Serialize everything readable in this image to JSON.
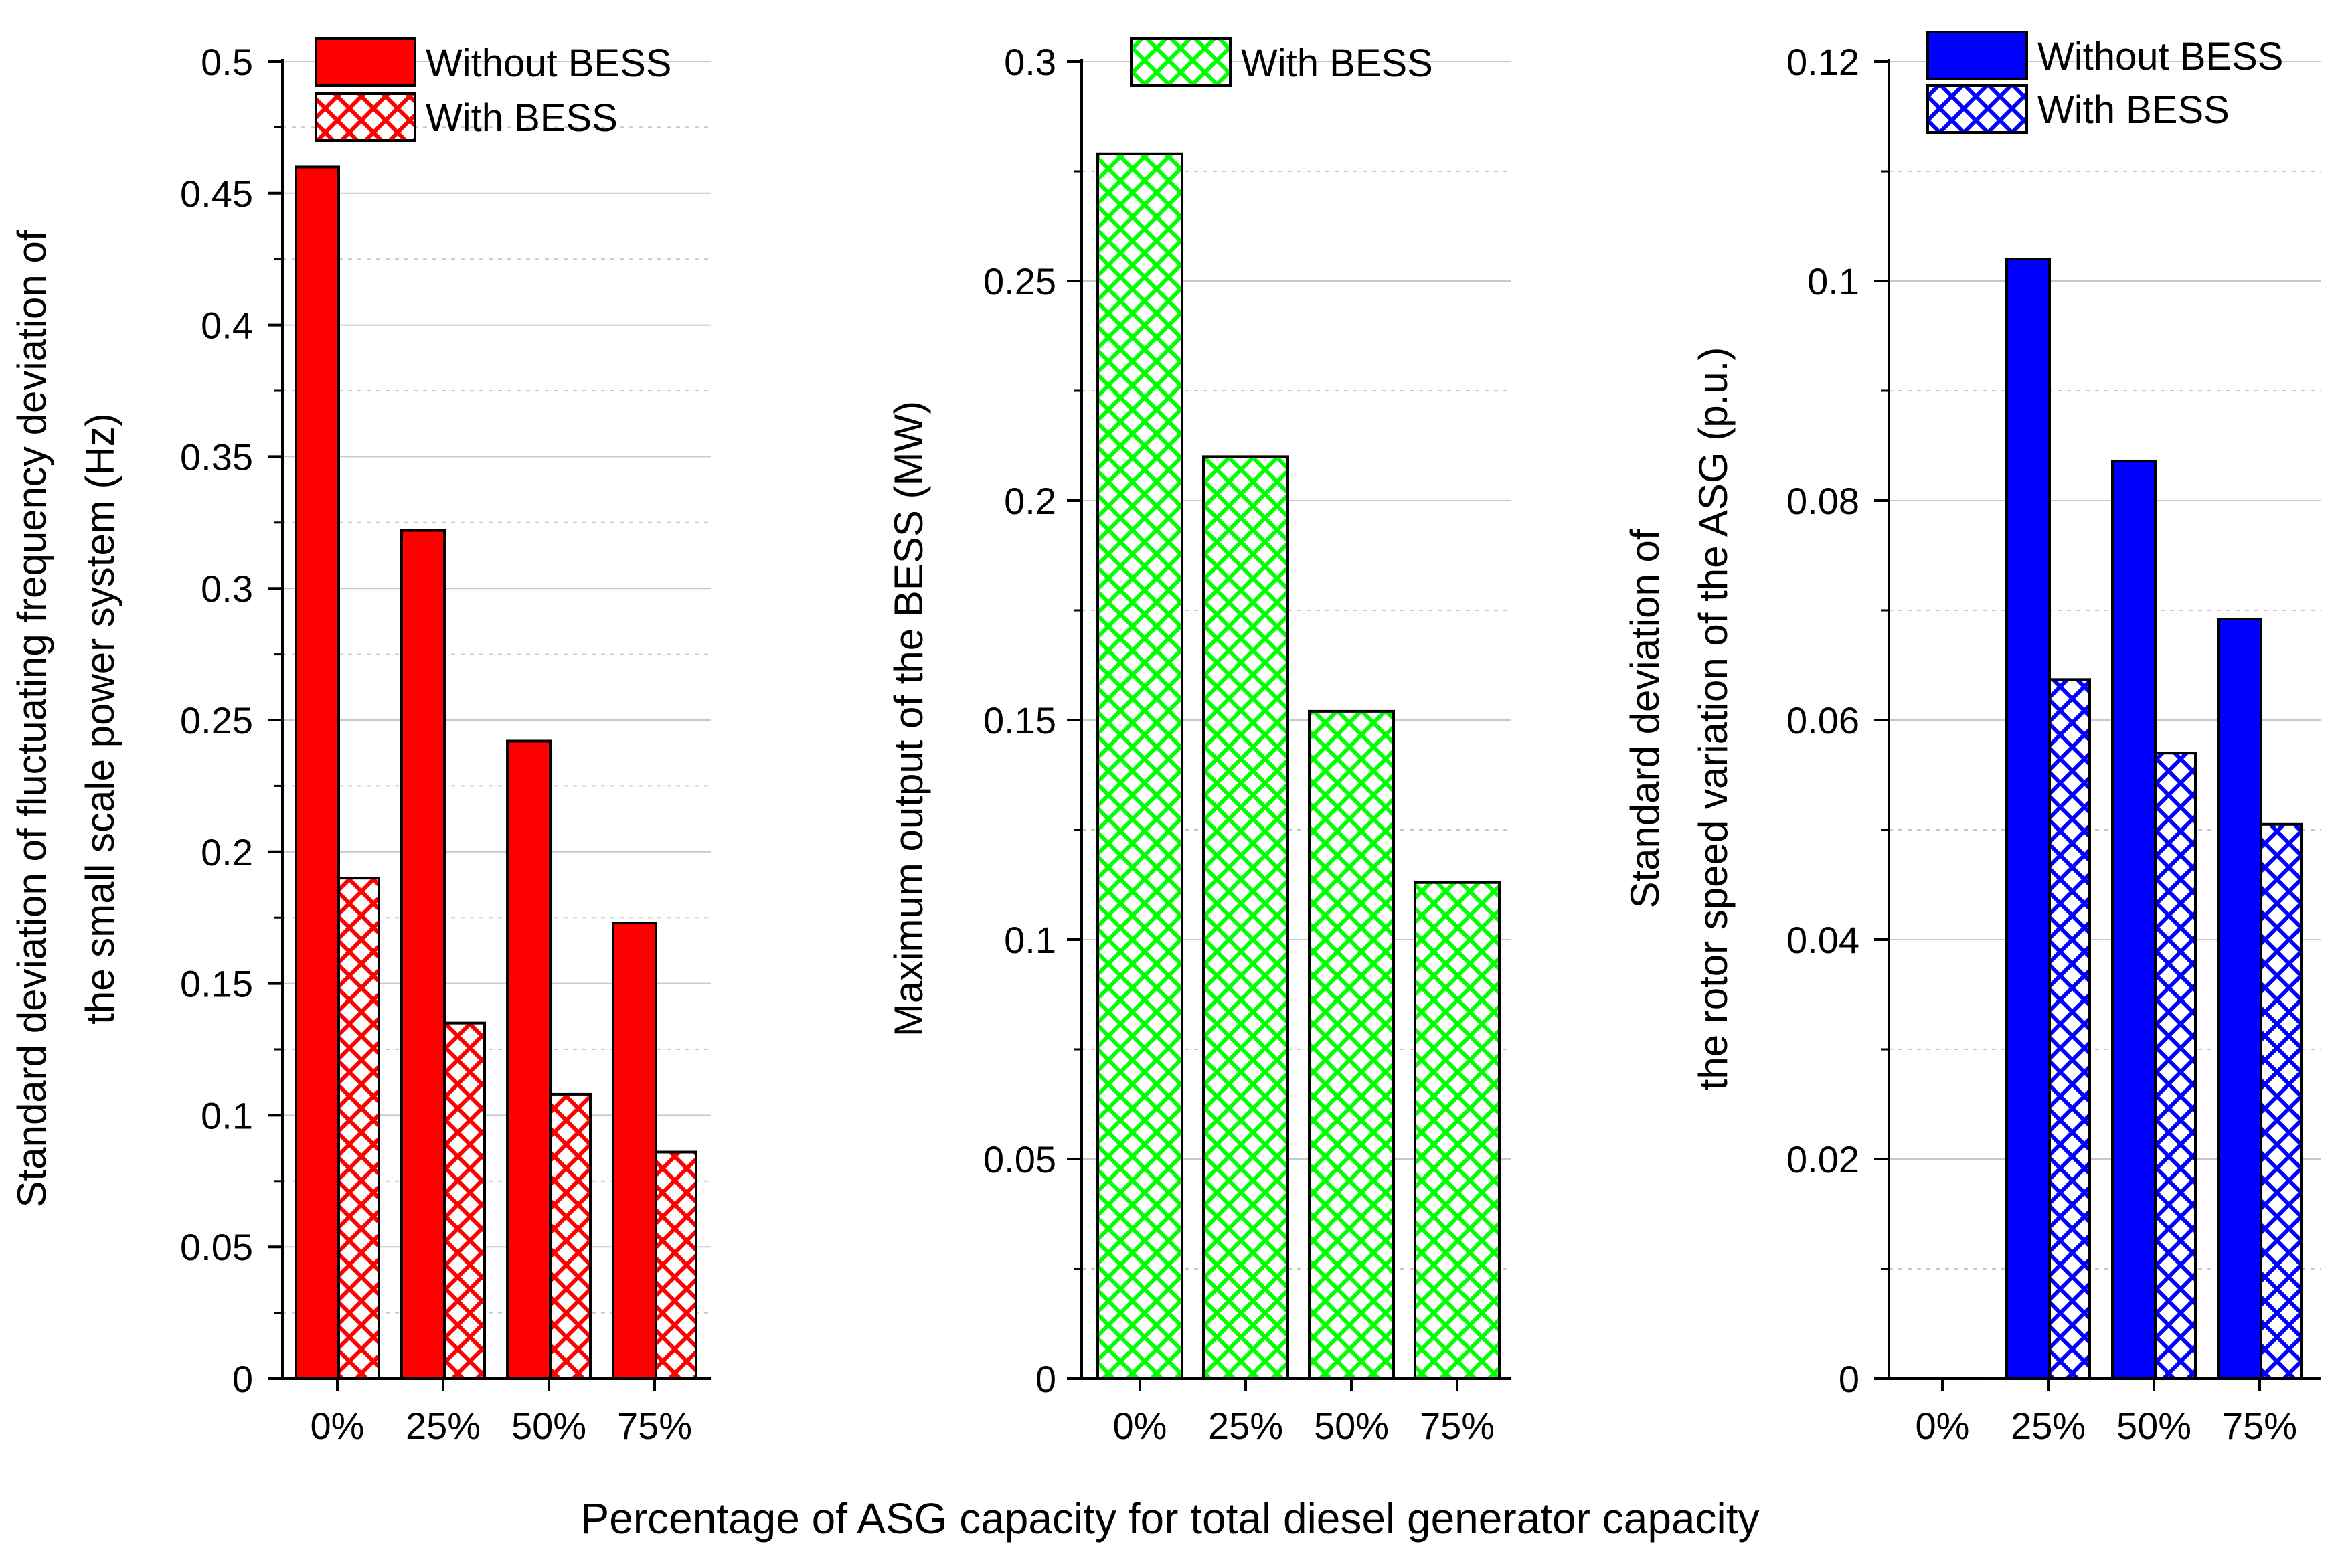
{
  "xlabel": "Percentage of ASG capacity for total diesel generator capacity",
  "colors": {
    "red": "#ff0000",
    "green": "#00ff00",
    "blue": "#0000ff",
    "grid": "#c8c8c8",
    "axis": "#000000"
  },
  "chart_data": [
    {
      "type": "bar",
      "title": "",
      "xlabel": "",
      "ylabel": [
        "Standard deviation of fluctuating frequency deviation of",
        "the small scale power system (Hz)"
      ],
      "categories": [
        "0%",
        "25%",
        "50%",
        "75%"
      ],
      "ylim": [
        0,
        0.5
      ],
      "yticks": [
        0,
        0.05,
        0.1,
        0.15,
        0.2,
        0.25,
        0.3,
        0.35,
        0.4,
        0.45,
        0.5
      ],
      "ytick_labels": [
        "0",
        "0.05",
        "0.1",
        "0.15",
        "0.2",
        "0.25",
        "0.3",
        "0.35",
        "0.4",
        "0.45",
        "0.5"
      ],
      "grid": true,
      "legend": "top-right",
      "series": [
        {
          "name": "Without BESS",
          "values": [
            0.46,
            0.322,
            0.242,
            0.173
          ],
          "color": "#ff0000",
          "pattern": "solid"
        },
        {
          "name": "With BESS",
          "values": [
            0.19,
            0.135,
            0.108,
            0.086
          ],
          "color": "#ff0000",
          "pattern": "crosshatch"
        }
      ]
    },
    {
      "type": "bar",
      "title": "",
      "xlabel": "",
      "ylabel": [
        "Maximum output of the BESS (MW)"
      ],
      "categories": [
        "0%",
        "25%",
        "50%",
        "75%"
      ],
      "ylim": [
        0,
        0.3
      ],
      "yticks": [
        0,
        0.05,
        0.1,
        0.15,
        0.2,
        0.25,
        0.3
      ],
      "ytick_labels": [
        "0",
        "0.05",
        "0.1",
        "0.15",
        "0.2",
        "0.25",
        "0.3"
      ],
      "grid": true,
      "legend": "top-right",
      "series": [
        {
          "name": "With BESS",
          "values": [
            0.279,
            0.21,
            0.152,
            0.113
          ],
          "color": "#00ff00",
          "pattern": "crosshatch"
        }
      ]
    },
    {
      "type": "bar",
      "title": "",
      "xlabel": "",
      "ylabel": [
        "Standard deviation of",
        "the rotor speed variation of the ASG (p.u.)"
      ],
      "categories": [
        "0%",
        "25%",
        "50%",
        "75%"
      ],
      "ylim": [
        0,
        0.12
      ],
      "yticks": [
        0,
        0.02,
        0.04,
        0.06,
        0.08,
        0.1,
        0.12
      ],
      "ytick_labels": [
        "0",
        "0.02",
        "0.04",
        "0.06",
        "0.08",
        "0.1",
        "0.12"
      ],
      "grid": true,
      "legend": "top-right",
      "series": [
        {
          "name": "Without BESS",
          "values": [
            0,
            0.102,
            0.0836,
            0.0692
          ],
          "color": "#0000ff",
          "pattern": "solid"
        },
        {
          "name": "With BESS",
          "values": [
            0,
            0.0637,
            0.057,
            0.0505
          ],
          "color": "#0000ff",
          "pattern": "crosshatch"
        }
      ]
    }
  ]
}
